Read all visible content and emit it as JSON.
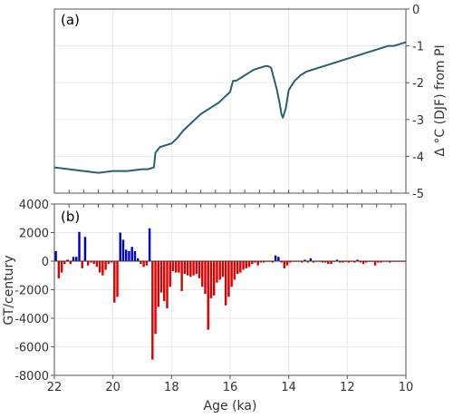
{
  "chart_data": [
    {
      "type": "line",
      "panel_label": "(a)",
      "ylabel": "Δ °C (DJF) from PI",
      "y_axis_side": "right",
      "x_reversed": true,
      "xlim": [
        22,
        10
      ],
      "ylim": [
        -5,
        0
      ],
      "yticks": [
        "0",
        "-1",
        "-2",
        "-3",
        "-4",
        "-5"
      ],
      "grid": true,
      "line_color": "#2a5f72",
      "x": [
        22.0,
        21.5,
        21.0,
        20.5,
        20.0,
        19.5,
        19.0,
        18.8,
        18.6,
        18.55,
        18.4,
        18.2,
        18.0,
        17.8,
        17.6,
        17.4,
        17.2,
        17.0,
        16.8,
        16.6,
        16.4,
        16.2,
        16.0,
        15.9,
        15.8,
        15.6,
        15.4,
        15.2,
        15.0,
        14.8,
        14.7,
        14.6,
        14.5,
        14.4,
        14.3,
        14.25,
        14.2,
        14.1,
        14.0,
        13.8,
        13.6,
        13.4,
        13.2,
        13.0,
        12.8,
        12.6,
        12.4,
        12.2,
        12.0,
        11.8,
        11.6,
        11.4,
        11.2,
        11.0,
        10.8,
        10.6,
        10.4,
        10.2,
        10.0
      ],
      "y": [
        -4.3,
        -4.35,
        -4.4,
        -4.45,
        -4.4,
        -4.4,
        -4.35,
        -4.35,
        -4.3,
        -3.9,
        -3.75,
        -3.7,
        -3.65,
        -3.5,
        -3.3,
        -3.15,
        -3.0,
        -2.85,
        -2.75,
        -2.65,
        -2.55,
        -2.4,
        -2.25,
        -1.95,
        -1.95,
        -1.85,
        -1.75,
        -1.65,
        -1.6,
        -1.55,
        -1.55,
        -1.6,
        -1.9,
        -2.2,
        -2.6,
        -2.85,
        -2.95,
        -2.7,
        -2.2,
        -1.95,
        -1.8,
        -1.7,
        -1.65,
        -1.6,
        -1.55,
        -1.5,
        -1.45,
        -1.4,
        -1.35,
        -1.3,
        -1.25,
        -1.2,
        -1.15,
        -1.1,
        -1.05,
        -1.0,
        -1.0,
        -0.95,
        -0.9
      ]
    },
    {
      "type": "bar",
      "panel_label": "(b)",
      "ylabel": "GT/century",
      "xlabel": "Age (ka)",
      "x_reversed": true,
      "xlim": [
        22,
        10
      ],
      "ylim": [
        -8000,
        4000
      ],
      "yticks": [
        "4000",
        "2000",
        "0",
        "-2000",
        "-4000",
        "-6000",
        "-8000"
      ],
      "xticks": [
        "22",
        "20",
        "18",
        "16",
        "14",
        "12",
        "10"
      ],
      "grid": true,
      "positive_color": "#0000cc",
      "negative_color": "#dd0000",
      "bar_width_ka": 0.1,
      "x": [
        21.95,
        21.85,
        21.75,
        21.65,
        21.55,
        21.45,
        21.35,
        21.25,
        21.15,
        21.05,
        20.95,
        20.85,
        20.75,
        20.65,
        20.55,
        20.45,
        20.35,
        20.25,
        20.15,
        20.05,
        19.95,
        19.85,
        19.75,
        19.65,
        19.55,
        19.45,
        19.35,
        19.25,
        19.15,
        19.05,
        18.95,
        18.85,
        18.75,
        18.65,
        18.55,
        18.45,
        18.35,
        18.25,
        18.15,
        18.05,
        17.95,
        17.85,
        17.75,
        17.65,
        17.55,
        17.45,
        17.35,
        17.25,
        17.15,
        17.05,
        16.95,
        16.85,
        16.75,
        16.65,
        16.55,
        16.45,
        16.35,
        16.25,
        16.15,
        16.05,
        15.95,
        15.85,
        15.75,
        15.65,
        15.55,
        15.45,
        15.35,
        15.25,
        15.15,
        15.05,
        14.95,
        14.85,
        14.75,
        14.65,
        14.55,
        14.45,
        14.35,
        14.25,
        14.15,
        14.05,
        13.95,
        13.85,
        13.75,
        13.65,
        13.55,
        13.45,
        13.35,
        13.25,
        13.15,
        13.05,
        12.95,
        12.85,
        12.75,
        12.65,
        12.55,
        12.45,
        12.35,
        12.25,
        12.15,
        12.05,
        11.95,
        11.85,
        11.75,
        11.65,
        11.55,
        11.45,
        11.35,
        11.25,
        11.15,
        11.05,
        10.95,
        10.85,
        10.75,
        10.65,
        10.55,
        10.45,
        10.35,
        10.25,
        10.15,
        10.05
      ],
      "values": [
        700,
        -1200,
        -800,
        -200,
        100,
        -200,
        300,
        300,
        2050,
        -500,
        1700,
        -300,
        -100,
        -200,
        -400,
        -800,
        -1000,
        -600,
        -200,
        -100,
        -2900,
        -2500,
        2000,
        1500,
        800,
        700,
        1000,
        700,
        200,
        -200,
        -400,
        -300,
        2300,
        -6900,
        -5100,
        -3200,
        -2200,
        -2800,
        -3300,
        -1800,
        -700,
        -800,
        -800,
        -2100,
        -900,
        -1000,
        -1100,
        -1000,
        -900,
        -1200,
        -1800,
        -2300,
        -4800,
        -2600,
        -2400,
        -1500,
        -1300,
        -1100,
        -3100,
        -2500,
        -1800,
        -1300,
        -900,
        -800,
        -600,
        -500,
        -400,
        -200,
        -100,
        -300,
        -100,
        -100,
        -50,
        -50,
        -100,
        400,
        300,
        -100,
        -500,
        -300,
        -100,
        -50,
        -50,
        -50,
        -100,
        100,
        -100,
        200,
        -100,
        -50,
        -50,
        -100,
        -100,
        -200,
        -200,
        -50,
        100,
        -100,
        -100,
        -50,
        -100,
        -50,
        -100,
        100,
        -100,
        -200,
        -100,
        -50,
        -50,
        -300,
        -100,
        -100,
        -50,
        -50,
        -100,
        -50,
        -50,
        -50,
        -50,
        -50
      ]
    }
  ]
}
